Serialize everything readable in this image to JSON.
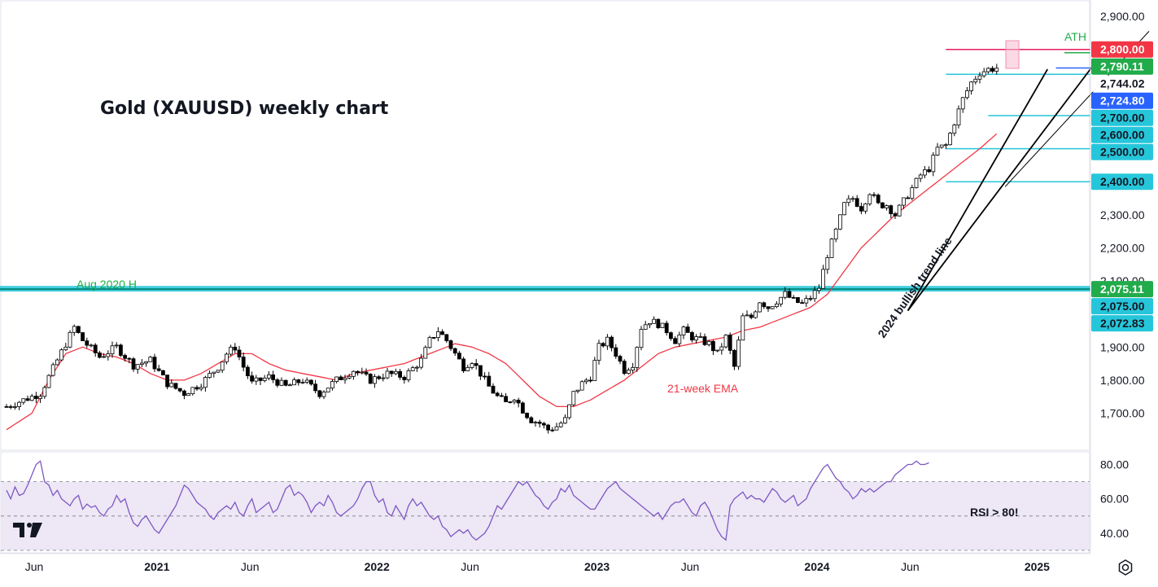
{
  "chart_data": {
    "type": "candlestick",
    "title": "Gold (XAUUSD) weekly chart",
    "price_axis": {
      "min": 1620,
      "max": 2920,
      "tick_labels": [
        "1,700.00",
        "1,800.00",
        "1,900.00",
        "2,200.00",
        "2,300.00",
        "2,900.00"
      ],
      "tick_values": [
        1700,
        1800,
        1900,
        2200,
        2300,
        2900
      ],
      "faint_label": "2,100.00",
      "faint_value": 2100
    },
    "time_axis": {
      "labels": [
        "Jun",
        "2021",
        "Jun",
        "2022",
        "Jun",
        "2023",
        "Jun",
        "2024",
        "Jun",
        "2025"
      ],
      "bold": [
        false,
        true,
        false,
        true,
        false,
        true,
        false,
        true,
        false,
        true
      ],
      "weeks": [
        0,
        29,
        51,
        81,
        103,
        133,
        155,
        185,
        207,
        237
      ]
    },
    "price_tags": [
      {
        "label": "2,800.00",
        "value": 2800,
        "bg": "#f23645",
        "fg": "#ffffff"
      },
      {
        "label": "2,790.11",
        "value": 2790.11,
        "bg": "#22ab4b",
        "fg": "#ffffff"
      },
      {
        "label": "2,744.02",
        "value": 2744.02,
        "bg": "#ffffff",
        "fg": "#131722"
      },
      {
        "label": "2,724.80",
        "value": 2724.8,
        "bg": "#2962ff",
        "fg": "#ffffff"
      },
      {
        "label": "2,700.00",
        "value": 2700,
        "bg": "#26c6da",
        "fg": "#131722"
      },
      {
        "label": "2,600.00",
        "value": 2600,
        "bg": "#26c6da",
        "fg": "#131722"
      },
      {
        "label": "2,500.00",
        "value": 2500,
        "bg": "#26c6da",
        "fg": "#131722"
      },
      {
        "label": "2,400.00",
        "value": 2400,
        "bg": "#26c6da",
        "fg": "#131722"
      },
      {
        "label": "2,075.11",
        "value": 2075.11,
        "bg": "#22ab4b",
        "fg": "#ffffff"
      },
      {
        "label": "2,075.00",
        "value": 2075,
        "bg": "#26c6da",
        "fg": "#131722"
      },
      {
        "label": "2,072.83",
        "value": 2072.83,
        "bg": "#26c6da",
        "fg": "#131722"
      }
    ],
    "horizontal_levels": [
      {
        "value": 2800,
        "color": "#e91e63",
        "from_week": 222
      },
      {
        "value": 2790.11,
        "color": "#22ab4b",
        "from_week": 250
      },
      {
        "value": 2744.02,
        "color": "#2962ff",
        "from_week": 248
      },
      {
        "value": 2724.8,
        "color": "#26c6da",
        "from_week": 222
      },
      {
        "value": 2600,
        "color": "#26c6da",
        "from_week": 232
      },
      {
        "value": 2500,
        "color": "#26c6da",
        "from_week": 222
      },
      {
        "value": 2400,
        "color": "#26c6da",
        "from_week": 222
      }
    ],
    "support_zone": {
      "value": 2075.11,
      "label": "Aug 2020 H",
      "color": "#26c6da"
    },
    "annotations": {
      "ath": "ATH",
      "ema_label": "21-week EMA",
      "trend_label": "2024 bullish trend line",
      "rsi_note": "RSI > 80!"
    },
    "trend_lines": [
      {
        "from": [
          213,
          2010
        ],
        "to": [
          246,
          2740
        ],
        "color": "#000000"
      },
      {
        "from": [
          213,
          2010
        ],
        "to": [
          257,
          2755
        ],
        "color": "#000000"
      },
      {
        "from": [
          236,
          2385
        ],
        "to": [
          270,
          2855
        ],
        "color": "#000000"
      }
    ],
    "series": [
      {
        "name": "XAUUSD",
        "kind": "candles",
        "anchors": [
          [
            0,
            1720
          ],
          [
            8,
            1760
          ],
          [
            12,
            1860
          ],
          [
            16,
            1960
          ],
          [
            18,
            1920
          ],
          [
            22,
            1870
          ],
          [
            26,
            1900
          ],
          [
            30,
            1845
          ],
          [
            34,
            1860
          ],
          [
            38,
            1790
          ],
          [
            42,
            1760
          ],
          [
            46,
            1790
          ],
          [
            50,
            1840
          ],
          [
            52,
            1880
          ],
          [
            54,
            1900
          ],
          [
            56,
            1840
          ],
          [
            58,
            1790
          ],
          [
            62,
            1810
          ],
          [
            66,
            1780
          ],
          [
            70,
            1800
          ],
          [
            74,
            1760
          ],
          [
            78,
            1800
          ],
          [
            82,
            1830
          ],
          [
            86,
            1800
          ],
          [
            90,
            1820
          ],
          [
            94,
            1810
          ],
          [
            98,
            1860
          ],
          [
            100,
            1920
          ],
          [
            102,
            1950
          ],
          [
            104,
            1920
          ],
          [
            106,
            1880
          ],
          [
            108,
            1840
          ],
          [
            110,
            1860
          ],
          [
            112,
            1820
          ],
          [
            114,
            1780
          ],
          [
            116,
            1750
          ],
          [
            118,
            1730
          ],
          [
            120,
            1750
          ],
          [
            122,
            1710
          ],
          [
            124,
            1680
          ],
          [
            126,
            1670
          ],
          [
            128,
            1650
          ],
          [
            130,
            1660
          ],
          [
            132,
            1680
          ],
          [
            134,
            1760
          ],
          [
            136,
            1790
          ],
          [
            138,
            1810
          ],
          [
            140,
            1900
          ],
          [
            142,
            1920
          ],
          [
            144,
            1880
          ],
          [
            146,
            1830
          ],
          [
            148,
            1850
          ],
          [
            150,
            1960
          ],
          [
            152,
            1980
          ],
          [
            154,
            1970
          ],
          [
            156,
            1950
          ],
          [
            158,
            1920
          ],
          [
            160,
            1950
          ],
          [
            162,
            1930
          ],
          [
            164,
            1920
          ],
          [
            166,
            1910
          ],
          [
            168,
            1880
          ],
          [
            170,
            1930
          ],
          [
            172,
            1840
          ],
          [
            174,
            1990
          ],
          [
            176,
            1990
          ],
          [
            178,
            2040
          ],
          [
            180,
            2020
          ],
          [
            182,
            2040
          ],
          [
            184,
            2060
          ],
          [
            186,
            2040
          ],
          [
            188,
            2030
          ],
          [
            190,
            2050
          ],
          [
            192,
            2080
          ],
          [
            194,
            2180
          ],
          [
            196,
            2250
          ],
          [
            198,
            2330
          ],
          [
            200,
            2350
          ],
          [
            202,
            2320
          ],
          [
            204,
            2370
          ],
          [
            206,
            2330
          ],
          [
            208,
            2330
          ],
          [
            210,
            2300
          ],
          [
            212,
            2340
          ],
          [
            214,
            2380
          ],
          [
            216,
            2420
          ],
          [
            218,
            2440
          ],
          [
            220,
            2500
          ],
          [
            222,
            2510
          ],
          [
            224,
            2580
          ],
          [
            226,
            2650
          ],
          [
            228,
            2700
          ],
          [
            230,
            2730
          ],
          [
            232,
            2740
          ],
          [
            234,
            2744
          ]
        ]
      },
      {
        "name": "21-week EMA",
        "kind": "line",
        "color": "#f23645",
        "anchors": [
          [
            0,
            1650
          ],
          [
            6,
            1700
          ],
          [
            10,
            1800
          ],
          [
            14,
            1880
          ],
          [
            18,
            1900
          ],
          [
            22,
            1880
          ],
          [
            26,
            1870
          ],
          [
            30,
            1850
          ],
          [
            34,
            1820
          ],
          [
            38,
            1800
          ],
          [
            42,
            1800
          ],
          [
            46,
            1820
          ],
          [
            50,
            1850
          ],
          [
            54,
            1880
          ],
          [
            58,
            1880
          ],
          [
            62,
            1850
          ],
          [
            66,
            1830
          ],
          [
            70,
            1820
          ],
          [
            74,
            1810
          ],
          [
            78,
            1800
          ],
          [
            82,
            1820
          ],
          [
            86,
            1830
          ],
          [
            90,
            1840
          ],
          [
            94,
            1850
          ],
          [
            98,
            1870
          ],
          [
            102,
            1890
          ],
          [
            106,
            1910
          ],
          [
            110,
            1900
          ],
          [
            114,
            1880
          ],
          [
            118,
            1850
          ],
          [
            122,
            1800
          ],
          [
            126,
            1750
          ],
          [
            130,
            1720
          ],
          [
            134,
            1720
          ],
          [
            138,
            1740
          ],
          [
            142,
            1770
          ],
          [
            146,
            1800
          ],
          [
            150,
            1840
          ],
          [
            154,
            1880
          ],
          [
            158,
            1900
          ],
          [
            162,
            1910
          ],
          [
            166,
            1920
          ],
          [
            170,
            1930
          ],
          [
            174,
            1950
          ],
          [
            178,
            1960
          ],
          [
            182,
            1980
          ],
          [
            186,
            2000
          ],
          [
            190,
            2020
          ],
          [
            194,
            2060
          ],
          [
            198,
            2130
          ],
          [
            202,
            2200
          ],
          [
            206,
            2250
          ],
          [
            210,
            2300
          ],
          [
            214,
            2340
          ],
          [
            218,
            2380
          ],
          [
            222,
            2420
          ],
          [
            226,
            2460
          ],
          [
            230,
            2500
          ],
          [
            234,
            2545
          ]
        ]
      }
    ],
    "x_range_weeks": [
      0,
      250
    ],
    "rsi": {
      "levels": [
        80,
        60,
        40
      ],
      "level_labels": [
        "80.00",
        "60.00",
        "40.00"
      ],
      "range": [
        30,
        85
      ],
      "overbought": 70,
      "oversold": 30,
      "values_weekly": [
        65,
        60,
        67,
        62,
        63,
        68,
        74,
        80,
        82,
        70,
        68,
        62,
        65,
        60,
        58,
        56,
        60,
        62,
        54,
        57,
        55,
        56,
        52,
        50,
        54,
        56,
        62,
        58,
        60,
        52,
        46,
        44,
        48,
        50,
        46,
        42,
        40,
        44,
        48,
        52,
        56,
        62,
        68,
        66,
        62,
        58,
        56,
        54,
        50,
        48,
        52,
        54,
        56,
        54,
        58,
        52,
        50,
        56,
        60,
        52,
        54,
        56,
        58,
        52,
        54,
        60,
        66,
        68,
        62,
        64,
        62,
        58,
        52,
        56,
        58,
        56,
        62,
        58,
        52,
        50,
        52,
        54,
        56,
        60,
        66,
        70,
        70,
        62,
        58,
        60,
        52,
        50,
        56,
        52,
        48,
        56,
        60,
        56,
        58,
        54,
        50,
        48,
        50,
        44,
        42,
        38,
        40,
        42,
        40,
        42,
        38,
        36,
        38,
        40,
        44,
        50,
        56,
        54,
        58,
        62,
        66,
        70,
        68,
        70,
        66,
        62,
        60,
        56,
        54,
        58,
        60,
        66,
        64,
        68,
        62,
        60,
        58,
        56,
        54,
        54,
        58,
        62,
        66,
        68,
        70,
        66,
        64,
        62,
        60,
        58,
        56,
        54,
        52,
        50,
        52,
        48,
        52,
        56,
        58,
        58,
        60,
        56,
        52,
        50,
        56,
        58,
        54,
        48,
        42,
        38,
        36,
        56,
        60,
        62,
        64,
        60,
        62,
        60,
        60,
        58,
        62,
        66,
        64,
        60,
        58,
        60,
        62,
        56,
        58,
        60,
        66,
        70,
        74,
        78,
        80,
        76,
        72,
        70,
        66,
        64,
        60,
        62,
        66,
        64,
        66,
        64,
        66,
        68,
        70,
        70,
        74,
        76,
        78,
        80,
        80,
        82,
        80,
        80,
        81
      ]
    },
    "colors": {
      "up": "#ffffff",
      "down": "#000000",
      "rsi_line": "#7e57c2",
      "rsi_band": "#ede7f6",
      "ema": "#f23645"
    }
  },
  "ui": {
    "settings_icon": "gear-icon",
    "logo": "tradingview-logo"
  }
}
